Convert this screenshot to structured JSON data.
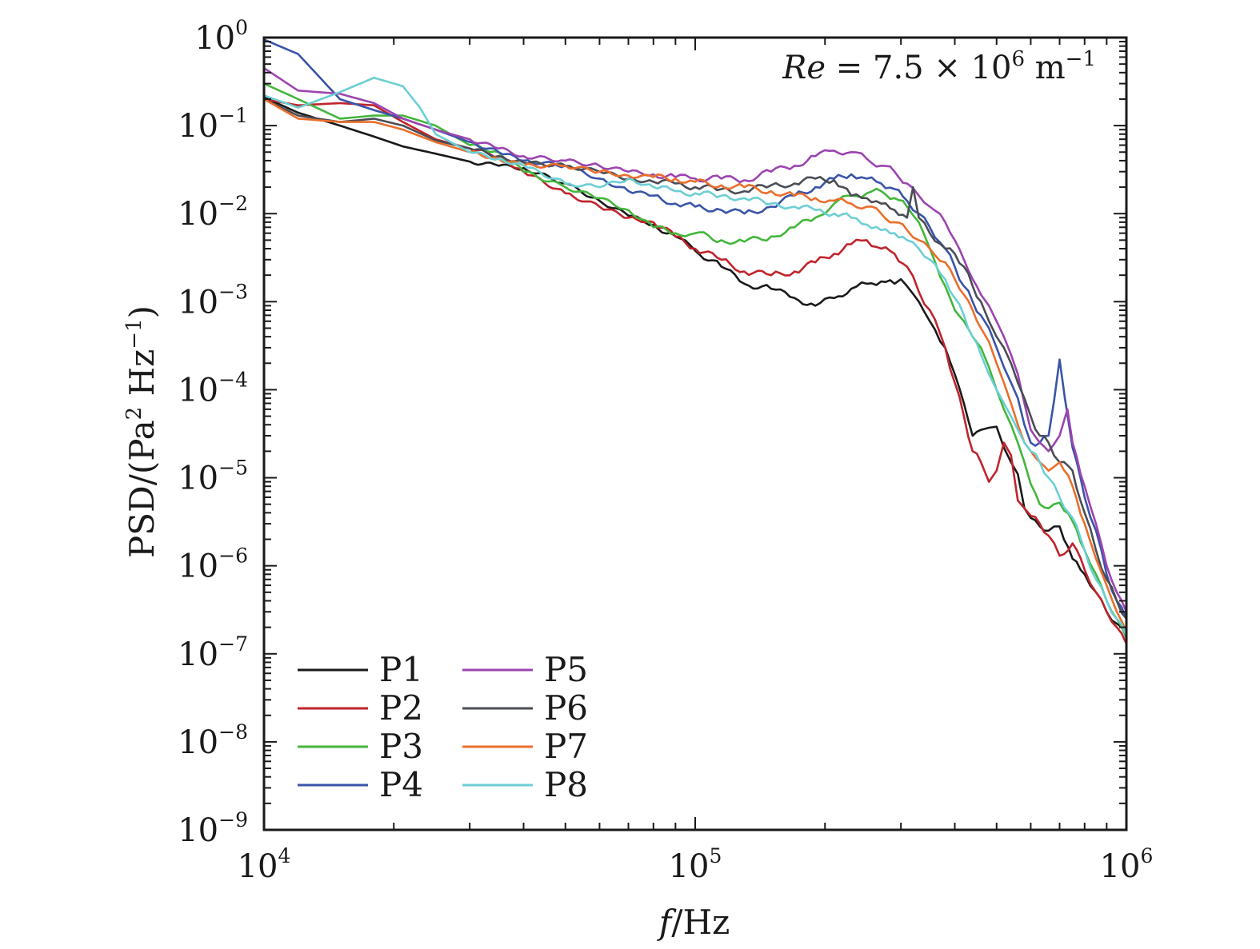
{
  "chart_data": {
    "type": "line",
    "title": "",
    "xlabel": "f/Hz",
    "ylabel": "PSD/(Pa² Hz⁻¹)",
    "xscale": "log",
    "yscale": "log",
    "xlim": [
      10000,
      1000000
    ],
    "ylim": [
      1e-09,
      1
    ],
    "x_ticks": [
      {
        "value": 10000,
        "base": "10",
        "exp": "4"
      },
      {
        "value": 100000,
        "base": "10",
        "exp": "5"
      },
      {
        "value": 1000000,
        "base": "10",
        "exp": "6"
      }
    ],
    "y_ticks": [
      {
        "value": 1,
        "base": "10",
        "exp": "0"
      },
      {
        "value": 0.1,
        "base": "10",
        "exp": "−1"
      },
      {
        "value": 0.01,
        "base": "10",
        "exp": "−2"
      },
      {
        "value": 0.001,
        "base": "10",
        "exp": "−3"
      },
      {
        "value": 0.0001,
        "base": "10",
        "exp": "−4"
      },
      {
        "value": 1e-05,
        "base": "10",
        "exp": "−5"
      },
      {
        "value": 1e-06,
        "base": "10",
        "exp": "−6"
      },
      {
        "value": 1e-07,
        "base": "10",
        "exp": "−7"
      },
      {
        "value": 1e-08,
        "base": "10",
        "exp": "−8"
      },
      {
        "value": 1e-09,
        "base": "10",
        "exp": "−9"
      }
    ],
    "grid": false,
    "legend": {
      "placement": "bottom-left",
      "columns": 2
    },
    "annotation": {
      "text_main": "Re = 7.5 × 10",
      "exp": "6",
      "unit": " m",
      "unit_exp": "−1",
      "placement": "top-right"
    },
    "series": [
      {
        "name": "P1",
        "color": "#1a1a1a",
        "f": [
          10000,
          12000,
          15000,
          18000,
          21000,
          25000,
          30000,
          35000,
          40000,
          50000,
          60000,
          70000,
          80000,
          90000,
          100000,
          115000,
          130000,
          150000,
          170000,
          190000,
          210000,
          230000,
          250000,
          270000,
          290000,
          300000,
          310000,
          330000,
          350000,
          380000,
          400000,
          420000,
          440000,
          460000,
          480000,
          500000,
          520000,
          540000,
          560000,
          580000,
          600000,
          630000,
          660000,
          700000,
          750000,
          800000,
          850000,
          900000,
          950000,
          1000000
        ],
        "psd": [
          0.21,
          0.14,
          0.1,
          0.075,
          0.058,
          0.048,
          0.039,
          0.035,
          0.033,
          0.022,
          0.014,
          0.0095,
          0.0075,
          0.0055,
          0.0038,
          0.0025,
          0.0016,
          0.0014,
          0.0011,
          0.0009,
          0.0011,
          0.0014,
          0.0016,
          0.0017,
          0.0016,
          0.0018,
          0.0015,
          0.001,
          0.0006,
          0.0003,
          0.00015,
          7e-05,
          3e-05,
          3.5e-05,
          3.7e-05,
          3.8e-05,
          2.2e-05,
          1.5e-05,
          1.1e-05,
          4.5e-06,
          3.5e-06,
          2.8e-06,
          2.5e-06,
          2.8e-06,
          1.2e-06,
          8e-07,
          5e-07,
          3e-07,
          2.2e-07,
          1.6e-07
        ]
      },
      {
        "name": "P2",
        "color": "#c0242c",
        "f": [
          10000,
          12000,
          15000,
          18000,
          21000,
          25000,
          30000,
          35000,
          40000,
          50000,
          60000,
          70000,
          80000,
          90000,
          100000,
          115000,
          130000,
          150000,
          170000,
          190000,
          210000,
          230000,
          250000,
          270000,
          290000,
          310000,
          330000,
          350000,
          380000,
          400000,
          420000,
          440000,
          460000,
          480000,
          500000,
          520000,
          540000,
          560000,
          580000,
          600000,
          630000,
          660000,
          700000,
          750000,
          800000,
          850000,
          900000,
          950000,
          1000000
        ],
        "psd": [
          0.2,
          0.17,
          0.18,
          0.17,
          0.11,
          0.07,
          0.055,
          0.045,
          0.03,
          0.017,
          0.012,
          0.009,
          0.008,
          0.0055,
          0.004,
          0.003,
          0.0022,
          0.002,
          0.0022,
          0.0028,
          0.0035,
          0.0045,
          0.005,
          0.004,
          0.0035,
          0.0025,
          0.0013,
          0.0008,
          0.0003,
          0.00012,
          5e-05,
          2e-05,
          1.5e-05,
          9e-06,
          1.2e-05,
          2.5e-05,
          1.8e-05,
          5.5e-06,
          4.5e-06,
          3.7e-06,
          3e-06,
          2.2e-06,
          1.3e-06,
          1.8e-06,
          9e-07,
          5e-07,
          3e-07,
          2e-07,
          1.3e-07
        ]
      },
      {
        "name": "P3",
        "color": "#44b63c",
        "f": [
          10000,
          12000,
          15000,
          18000,
          21000,
          25000,
          30000,
          35000,
          40000,
          50000,
          60000,
          70000,
          80000,
          90000,
          100000,
          115000,
          130000,
          150000,
          170000,
          190000,
          210000,
          230000,
          250000,
          270000,
          290000,
          310000,
          330000,
          350000,
          380000,
          400000,
          420000,
          440000,
          460000,
          480000,
          500000,
          520000,
          540000,
          560000,
          580000,
          600000,
          630000,
          660000,
          700000,
          750000,
          800000,
          850000,
          900000,
          950000,
          1000000
        ],
        "psd": [
          0.3,
          0.2,
          0.12,
          0.13,
          0.13,
          0.1,
          0.06,
          0.05,
          0.03,
          0.02,
          0.015,
          0.011,
          0.007,
          0.006,
          0.006,
          0.005,
          0.0048,
          0.0055,
          0.007,
          0.009,
          0.013,
          0.016,
          0.017,
          0.018,
          0.015,
          0.012,
          0.008,
          0.004,
          0.0015,
          0.0008,
          0.0006,
          0.0004,
          0.0003,
          0.00018,
          0.0001,
          6e-05,
          4e-05,
          2.5e-05,
          1.5e-05,
          8.5e-06,
          5e-06,
          4.5e-06,
          5.2e-06,
          3.2e-06,
          1.5e-06,
          8e-07,
          4e-07,
          2.5e-07,
          1.5e-07
        ]
      },
      {
        "name": "P4",
        "color": "#3a54a8",
        "f": [
          10000,
          12000,
          15000,
          18000,
          21000,
          25000,
          30000,
          35000,
          40000,
          50000,
          60000,
          70000,
          80000,
          90000,
          100000,
          115000,
          130000,
          150000,
          170000,
          190000,
          210000,
          230000,
          250000,
          270000,
          290000,
          310000,
          330000,
          350000,
          380000,
          400000,
          420000,
          440000,
          460000,
          480000,
          500000,
          520000,
          540000,
          560000,
          580000,
          600000,
          630000,
          660000,
          700000,
          720000,
          750000,
          800000,
          850000,
          900000,
          950000,
          1000000
        ],
        "psd": [
          0.95,
          0.65,
          0.2,
          0.15,
          0.12,
          0.09,
          0.065,
          0.05,
          0.04,
          0.035,
          0.025,
          0.018,
          0.016,
          0.013,
          0.012,
          0.011,
          0.01,
          0.012,
          0.016,
          0.02,
          0.025,
          0.028,
          0.025,
          0.022,
          0.019,
          0.014,
          0.01,
          0.007,
          0.004,
          0.0025,
          0.0015,
          0.001,
          0.0007,
          0.0005,
          0.0003,
          0.00018,
          0.00012,
          8e-05,
          4e-05,
          2.5e-05,
          2.5e-05,
          3e-05,
          0.00022,
          8e-05,
          2.2e-05,
          6e-06,
          2.5e-06,
          8e-07,
          4e-07,
          2.5e-07
        ]
      },
      {
        "name": "P5",
        "color": "#9c44b0",
        "f": [
          10000,
          12000,
          15000,
          18000,
          21000,
          25000,
          30000,
          35000,
          40000,
          50000,
          60000,
          70000,
          80000,
          90000,
          100000,
          115000,
          130000,
          150000,
          170000,
          190000,
          210000,
          230000,
          250000,
          270000,
          290000,
          310000,
          330000,
          350000,
          380000,
          400000,
          420000,
          440000,
          460000,
          480000,
          500000,
          520000,
          540000,
          560000,
          580000,
          600000,
          630000,
          660000,
          700000,
          730000,
          750000,
          800000,
          850000,
          900000,
          950000,
          1000000
        ],
        "psd": [
          0.45,
          0.25,
          0.23,
          0.18,
          0.12,
          0.09,
          0.07,
          0.055,
          0.045,
          0.04,
          0.035,
          0.03,
          0.028,
          0.026,
          0.025,
          0.025,
          0.024,
          0.03,
          0.035,
          0.045,
          0.052,
          0.05,
          0.042,
          0.035,
          0.03,
          0.022,
          0.016,
          0.012,
          0.008,
          0.005,
          0.003,
          0.0018,
          0.0012,
          0.0009,
          0.0006,
          0.0004,
          0.00025,
          0.00015,
          7e-05,
          3.5e-05,
          2.5e-05,
          2e-05,
          3e-05,
          6e-05,
          2.5e-05,
          8e-06,
          3e-06,
          1e-06,
          5e-07,
          3e-07
        ]
      },
      {
        "name": "P6",
        "color": "#4a4d55",
        "f": [
          10000,
          12000,
          15000,
          18000,
          21000,
          25000,
          30000,
          35000,
          40000,
          50000,
          60000,
          70000,
          80000,
          90000,
          100000,
          115000,
          130000,
          150000,
          170000,
          190000,
          210000,
          230000,
          250000,
          270000,
          290000,
          310000,
          320000,
          330000,
          350000,
          380000,
          400000,
          420000,
          440000,
          460000,
          480000,
          500000,
          520000,
          540000,
          560000,
          580000,
          600000,
          630000,
          660000,
          700000,
          750000,
          800000,
          850000,
          900000,
          950000,
          1000000
        ],
        "psd": [
          0.2,
          0.13,
          0.11,
          0.12,
          0.1,
          0.068,
          0.055,
          0.045,
          0.038,
          0.035,
          0.03,
          0.025,
          0.023,
          0.022,
          0.02,
          0.019,
          0.018,
          0.021,
          0.022,
          0.025,
          0.024,
          0.016,
          0.015,
          0.013,
          0.011,
          0.009,
          0.02,
          0.009,
          0.006,
          0.004,
          0.0035,
          0.0025,
          0.0015,
          0.001,
          0.0006,
          0.0004,
          0.0003,
          0.0002,
          0.00012,
          8e-05,
          5e-05,
          3e-05,
          2.5e-05,
          1.5e-05,
          1.2e-05,
          4e-06,
          1.5e-06,
          7e-07,
          4e-07,
          2.5e-07
        ]
      },
      {
        "name": "P7",
        "color": "#ea6f2c",
        "f": [
          10000,
          12000,
          15000,
          18000,
          21000,
          25000,
          30000,
          35000,
          40000,
          50000,
          60000,
          70000,
          80000,
          90000,
          100000,
          115000,
          130000,
          150000,
          170000,
          190000,
          210000,
          230000,
          250000,
          270000,
          290000,
          310000,
          330000,
          350000,
          380000,
          400000,
          420000,
          440000,
          460000,
          480000,
          500000,
          520000,
          540000,
          560000,
          580000,
          600000,
          630000,
          660000,
          700000,
          750000,
          800000,
          850000,
          900000,
          950000,
          1000000
        ],
        "psd": [
          0.2,
          0.12,
          0.11,
          0.11,
          0.09,
          0.065,
          0.05,
          0.042,
          0.035,
          0.035,
          0.03,
          0.027,
          0.026,
          0.025,
          0.023,
          0.021,
          0.02,
          0.018,
          0.016,
          0.015,
          0.014,
          0.013,
          0.012,
          0.01,
          0.008,
          0.0065,
          0.005,
          0.004,
          0.0028,
          0.0018,
          0.0012,
          0.0008,
          0.0005,
          0.00035,
          0.0002,
          0.00012,
          7e-05,
          4e-05,
          2.5e-05,
          2e-05,
          1.5e-05,
          1.2e-05,
          1.5e-05,
          8e-06,
          3e-06,
          1.2e-06,
          6e-07,
          3e-07,
          1.8e-07
        ]
      },
      {
        "name": "P8",
        "color": "#6ccfd4",
        "f": [
          10000,
          12000,
          15000,
          18000,
          21000,
          23000,
          25000,
          30000,
          35000,
          40000,
          50000,
          60000,
          70000,
          80000,
          90000,
          100000,
          115000,
          130000,
          150000,
          170000,
          190000,
          210000,
          230000,
          250000,
          270000,
          290000,
          310000,
          330000,
          350000,
          380000,
          400000,
          420000,
          440000,
          460000,
          480000,
          500000,
          520000,
          540000,
          560000,
          580000,
          600000,
          630000,
          660000,
          700000,
          750000,
          800000,
          850000,
          900000,
          950000,
          1000000
        ],
        "psd": [
          0.22,
          0.16,
          0.24,
          0.35,
          0.28,
          0.16,
          0.08,
          0.05,
          0.042,
          0.035,
          0.022,
          0.02,
          0.025,
          0.02,
          0.018,
          0.017,
          0.016,
          0.015,
          0.013,
          0.012,
          0.011,
          0.01,
          0.009,
          0.0075,
          0.0065,
          0.006,
          0.005,
          0.004,
          0.003,
          0.0018,
          0.0011,
          0.0007,
          0.0004,
          0.00025,
          0.00015,
          0.0001,
          7e-05,
          5e-05,
          3.5e-05,
          2.5e-05,
          2e-05,
          1.5e-05,
          1e-05,
          6e-06,
          3.5e-06,
          1.5e-06,
          7e-07,
          4e-07,
          2.5e-07,
          1.6e-07
        ]
      }
    ]
  }
}
